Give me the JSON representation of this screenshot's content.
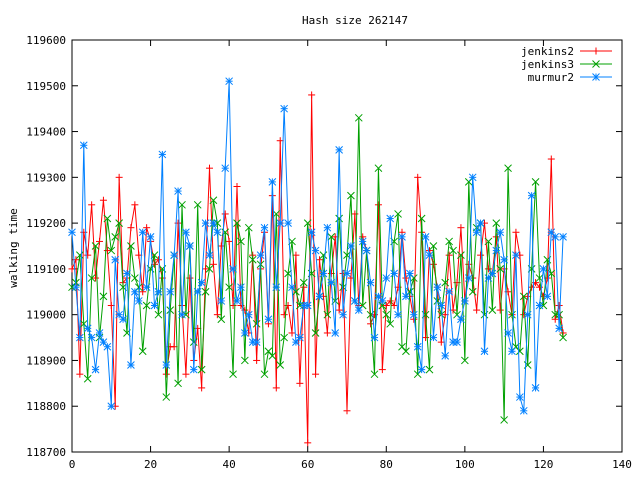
{
  "chart_data": {
    "type": "line",
    "title": "Hash size 262147",
    "xlabel": "",
    "ylabel": "walking time",
    "xlim": [
      0,
      140
    ],
    "ylim": [
      118700,
      119600
    ],
    "x_ticks": [
      0,
      20,
      40,
      60,
      80,
      100,
      120,
      140
    ],
    "y_ticks": [
      118700,
      118800,
      118900,
      119000,
      119100,
      119200,
      119300,
      119400,
      119500,
      119600
    ],
    "grid": false,
    "legend_position": "top-right",
    "series": [
      {
        "name": "jenkins2",
        "color": "#ff0000",
        "marker": "plus",
        "values": [
          119100,
          119120,
          118870,
          119180,
          119130,
          119240,
          119080,
          119160,
          119250,
          119140,
          119020,
          118800,
          119300,
          119070,
          119080,
          119190,
          119240,
          119130,
          119050,
          119190,
          119160,
          119110,
          119120,
          119080,
          118870,
          118930,
          118930,
          119200,
          119020,
          118870,
          119080,
          118900,
          118970,
          118840,
          119100,
          119320,
          119110,
          119000,
          119150,
          119220,
          119160,
          119020,
          119280,
          119020,
          119010,
          118960,
          119130,
          118900,
          119100,
          119180,
          118980,
          119260,
          118840,
          119380,
          119000,
          119020,
          118960,
          119130,
          118850,
          119060,
          118720,
          119480,
          118870,
          119120,
          119040,
          118960,
          119090,
          119170,
          119010,
          119090,
          118790,
          119080,
          119220,
          119020,
          119170,
          119140,
          118980,
          119000,
          119240,
          118880,
          119020,
          119030,
          119020,
          119060,
          119180,
          119080,
          119040,
          118990,
          119300,
          119180,
          118950,
          119140,
          119110,
          119060,
          118940,
          119000,
          119130,
          119010,
          119070,
          119190,
          119030,
          119110,
          119080,
          119010,
          119130,
          119200,
          119100,
          119090,
          119170,
          119010,
          119100,
          119050,
          119000,
          119180,
          119130,
          119000,
          119040,
          119060,
          119070,
          119060,
          119040,
          119080,
          119340,
          118990,
          119020,
          118960
        ],
        "x_start": 0
      },
      {
        "name": "jenkins3",
        "color": "#00a000",
        "marker": "cross",
        "values": [
          119060,
          119070,
          119130,
          118980,
          118860,
          119080,
          119150,
          118950,
          119040,
          119210,
          119140,
          119170,
          119200,
          119060,
          118960,
          119150,
          119080,
          119060,
          118920,
          119020,
          119100,
          119130,
          119000,
          119100,
          118820,
          119010,
          119130,
          118850,
          119240,
          119000,
          119150,
          118940,
          119240,
          118880,
          119050,
          119100,
          119250,
          119200,
          118990,
          119180,
          119060,
          118870,
          119200,
          119160,
          118900,
          119190,
          119120,
          118980,
          119110,
          118870,
          118920,
          118910,
          119220,
          118890,
          118950,
          119090,
          119160,
          119050,
          119020,
          119070,
          119200,
          119090,
          118960,
          119040,
          119130,
          119000,
          119170,
          119030,
          119210,
          119060,
          119130,
          119260,
          119030,
          119430,
          119020,
          119140,
          119000,
          118870,
          119320,
          119020,
          119000,
          118980,
          119160,
          119220,
          118930,
          118920,
          119050,
          119080,
          118870,
          119210,
          119000,
          118880,
          119150,
          119030,
          119000,
          119070,
          119160,
          119140,
          119000,
          119130,
          118900,
          119290,
          119050,
          119190,
          119200,
          119000,
          119160,
          119010,
          119200,
          119100,
          118770,
          119320,
          119000,
          118930,
          118920,
          119040,
          118890,
          119100,
          119290,
          119080,
          119020,
          119120,
          119090,
          119000,
          119000,
          118950
        ],
        "x_start": 0
      },
      {
        "name": "murmur2",
        "color": "#0080ff",
        "marker": "star",
        "values": [
          119180,
          119060,
          118950,
          119370,
          118970,
          118950,
          118880,
          118960,
          118940,
          118930,
          118800,
          119120,
          119000,
          118990,
          119090,
          118890,
          119050,
          119030,
          119180,
          119060,
          119170,
          119020,
          119050,
          119350,
          118890,
          119050,
          119130,
          119270,
          119000,
          119180,
          119150,
          118880,
          119050,
          119070,
          119200,
          119130,
          119200,
          119180,
          119030,
          119320,
          119510,
          119100,
          119030,
          119060,
          118960,
          119000,
          118940,
          118940,
          119130,
          119190,
          118990,
          119290,
          119060,
          119200,
          119450,
          119200,
          119060,
          118940,
          118950,
          119020,
          119020,
          119180,
          119140,
          119040,
          119090,
          119190,
          119070,
          118960,
          119360,
          119000,
          119090,
          119150,
          119030,
          119010,
          119160,
          119140,
          119070,
          118950,
          119040,
          119030,
          119080,
          119210,
          119090,
          119000,
          119170,
          119040,
          119090,
          119000,
          118930,
          118880,
          119170,
          119130,
          118950,
          119060,
          119020,
          118910,
          119050,
          118940,
          118940,
          118990,
          119030,
          119080,
          119300,
          119180,
          119200,
          118920,
          119080,
          119090,
          119140,
          119180,
          119120,
          118960,
          118920,
          119130,
          118820,
          118790,
          119000,
          119260,
          118840,
          119020,
          119100,
          119040,
          119180,
          119170,
          118970,
          119170
        ],
        "x_start": 0
      }
    ]
  }
}
